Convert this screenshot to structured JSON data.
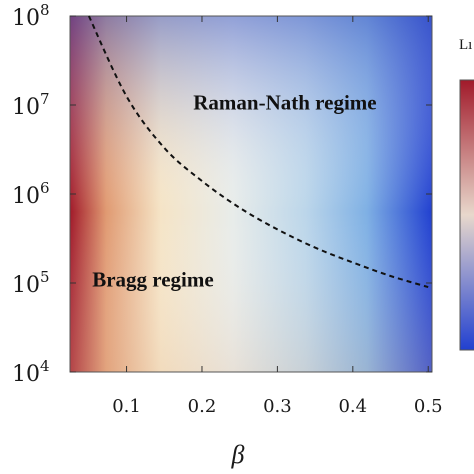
{
  "chart_data": {
    "type": "heatmap",
    "title": "",
    "xlabel": "β",
    "ylabel": "",
    "xlim": [
      0.025,
      0.505
    ],
    "ylim_log10": [
      4,
      8
    ],
    "yscale": "log",
    "x_ticks": [
      "0.1",
      "0.2",
      "0.3",
      "0.4",
      "0.5"
    ],
    "x_tick_values": [
      0.1,
      0.2,
      0.3,
      0.4,
      0.5
    ],
    "y_ticks": [
      {
        "base": "10",
        "exp": "4"
      },
      {
        "base": "10",
        "exp": "5"
      },
      {
        "base": "10",
        "exp": "6"
      },
      {
        "base": "10",
        "exp": "7"
      },
      {
        "base": "10",
        "exp": "8"
      }
    ],
    "y_tick_exponents": [
      4,
      5,
      6,
      7,
      8
    ],
    "colormap": [
      "#a11a2a",
      "#e09a72",
      "#f5e4c6",
      "#e8ecea",
      "#bcd6ea",
      "#7fb0e4",
      "#2140d0"
    ],
    "boundary_curve": {
      "style": "dashed",
      "color": "#111111",
      "points": [
        {
          "x": 0.05,
          "y": 100000000.0
        },
        {
          "x": 0.1,
          "y": 12500000.0
        },
        {
          "x": 0.15,
          "y": 3300000.0
        },
        {
          "x": 0.2,
          "y": 1400000.0
        },
        {
          "x": 0.25,
          "y": 700000.0
        },
        {
          "x": 0.3,
          "y": 400000.0
        },
        {
          "x": 0.35,
          "y": 250000.0
        },
        {
          "x": 0.4,
          "y": 170000.0
        },
        {
          "x": 0.45,
          "y": 120000.0
        },
        {
          "x": 0.5,
          "y": 90000.0
        }
      ]
    },
    "annotations": [
      {
        "text": "Raman-Nath regime",
        "x": 0.31,
        "y_log10": 6.95
      },
      {
        "text": "Bragg regime",
        "x": 0.135,
        "y_log10": 4.96
      }
    ],
    "colorbar": {
      "title_visible": "Lı",
      "gradient": [
        "#2140d0",
        "#a11a2a"
      ]
    }
  }
}
